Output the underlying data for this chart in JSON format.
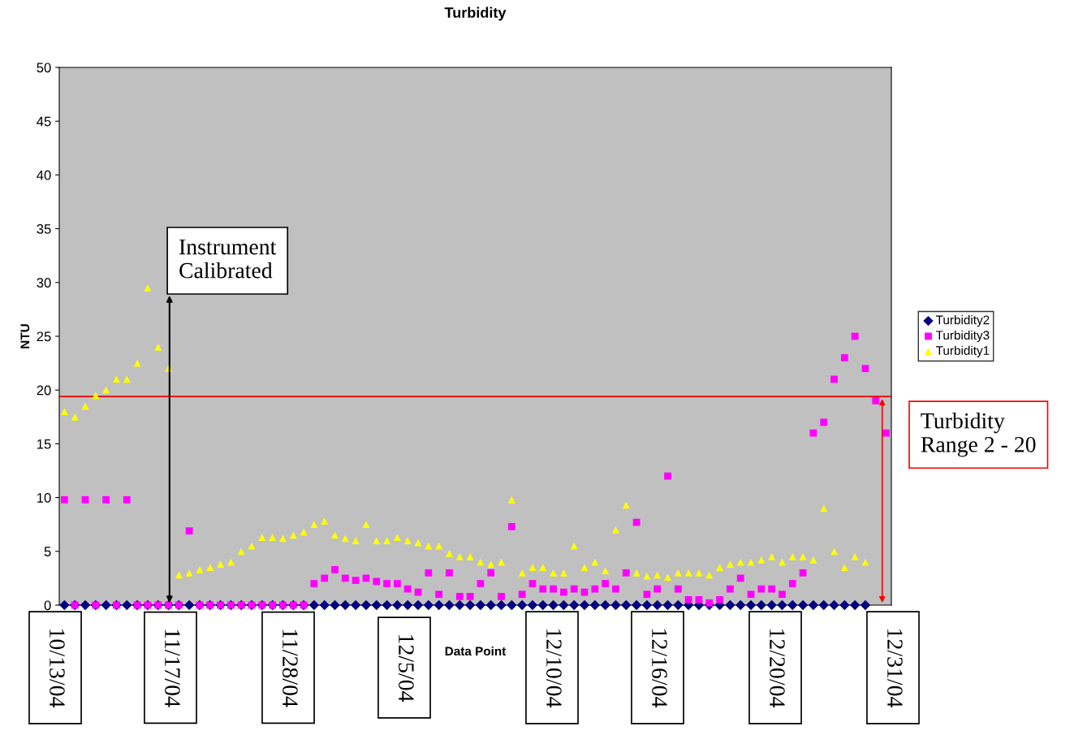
{
  "chart_data": {
    "type": "scatter",
    "title": "Turbidity",
    "xlabel": "Data Point",
    "ylabel": "NTU",
    "categories": [
      null,
      null,
      null,
      null,
      null,
      null,
      null,
      null,
      null,
      null,
      null,
      null,
      null,
      null,
      null,
      null,
      null,
      null,
      null,
      null,
      null,
      null,
      null,
      null,
      null,
      null,
      null,
      null,
      null,
      null,
      null,
      null,
      null,
      null,
      null,
      null,
      null,
      null,
      null,
      null,
      null,
      null,
      null,
      null,
      null,
      null,
      null,
      null,
      null,
      null,
      null,
      null,
      null,
      null,
      null,
      null,
      null,
      null,
      null,
      null,
      null,
      null,
      null,
      null,
      null,
      null,
      null,
      null,
      null,
      null,
      null,
      null,
      null,
      null,
      null,
      null,
      null,
      null,
      null,
      null
    ],
    "ylim": [
      0,
      50
    ],
    "yticks": [
      0,
      5,
      10,
      15,
      20,
      25,
      30,
      35,
      40,
      45,
      50
    ],
    "tick_labels": "y",
    "grid": false,
    "legend": "right",
    "series": [
      {
        "name": "Turbidity2",
        "color": "#000080",
        "marker": "diamond",
        "values": [
          0,
          0,
          0,
          0,
          0,
          0,
          0,
          0,
          0,
          0,
          0,
          0,
          0,
          0,
          0,
          0,
          0,
          0,
          0,
          0,
          0,
          0,
          0,
          0,
          0,
          0,
          0,
          0,
          0,
          0,
          0,
          0,
          0,
          0,
          0,
          0,
          0,
          0,
          0,
          0,
          0,
          0,
          0,
          0,
          0,
          0,
          0,
          0,
          0,
          0,
          0,
          0,
          0,
          0,
          0,
          0,
          0,
          0,
          0,
          0,
          0,
          0,
          0,
          0,
          0,
          0,
          0,
          0,
          0,
          0,
          0,
          0,
          0,
          0,
          0,
          0,
          0,
          0,
          null,
          null
        ]
      },
      {
        "name": "Turbidity3",
        "color": "#ff00ff",
        "marker": "square",
        "values": [
          9.8,
          0,
          9.8,
          0,
          9.8,
          0,
          9.8,
          0,
          0,
          0,
          0,
          0,
          6.9,
          0,
          0,
          0,
          0,
          0,
          0,
          0,
          0,
          0,
          0,
          0,
          2,
          2.5,
          3.3,
          2.5,
          2.3,
          2.5,
          2.2,
          2,
          2,
          1.5,
          1.2,
          3,
          1,
          3,
          0.8,
          0.8,
          2,
          3,
          0.8,
          7.3,
          1,
          2,
          1.5,
          1.5,
          1.2,
          1.5,
          1.2,
          1.5,
          2,
          1.5,
          3,
          7.7,
          1,
          1.5,
          12,
          1.5,
          0.5,
          0.5,
          0.2,
          0.5,
          1.5,
          2.5,
          1,
          1.5,
          1.5,
          1,
          2,
          3,
          16,
          17,
          21,
          23,
          25,
          22,
          19,
          16
        ]
      },
      {
        "name": "Turbidity1",
        "color": "#ffff00",
        "marker": "triangle",
        "values": [
          18,
          17.5,
          18.5,
          19.5,
          20,
          21,
          21,
          22.5,
          29.5,
          24,
          22,
          2.8,
          3,
          3.3,
          3.5,
          3.8,
          4,
          5,
          5.5,
          6.3,
          6.3,
          6.2,
          6.5,
          6.8,
          7.5,
          7.8,
          6.5,
          6.2,
          6,
          7.5,
          6,
          6,
          6.3,
          6,
          5.8,
          5.5,
          5.5,
          4.8,
          4.5,
          4.5,
          4,
          3.8,
          4,
          9.8,
          3,
          3.5,
          3.5,
          3,
          3,
          5.5,
          3.5,
          4,
          3.2,
          7,
          9.3,
          3,
          2.7,
          2.8,
          2.6,
          3,
          3,
          3,
          2.8,
          3.5,
          3.8,
          4,
          4,
          4.2,
          4.5,
          4,
          4.5,
          4.5,
          4.2,
          9,
          5,
          3.5,
          4.5,
          4,
          null,
          null
        ]
      }
    ],
    "ref_lines": [
      {
        "axis": "y",
        "value": 19.4,
        "label": "Turbidity Range 2 - 20",
        "color": "#ff0000"
      }
    ],
    "annotations": [
      "Instrument Calibrated",
      "10/13/04",
      "11/17/04",
      "11/28/04",
      "12/5/04",
      "12/10/04",
      "12/16/04",
      "12/20/04",
      "12/31/04"
    ]
  }
}
